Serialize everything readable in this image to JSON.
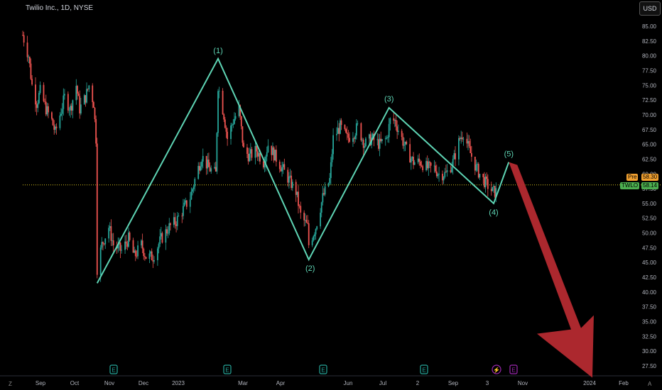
{
  "header": {
    "title": "Twilio Inc., 1D, NYSE",
    "currency_button": "USD"
  },
  "corner_labels": {
    "left": "Z",
    "right": "A"
  },
  "price_labels": {
    "pre_tag": "Pre",
    "pre_value": "58.30",
    "ticker_tag": "TWLO",
    "last_value": "58.14"
  },
  "colors": {
    "up": "#26a69a",
    "down": "#ef5350",
    "wave": "#5ed4b4",
    "arrow": "#b52a30",
    "dotted_line": "#d4c020",
    "earnings": "#26a69a",
    "event_purple": "#9c27b0"
  },
  "chart_data": {
    "type": "candlestick",
    "symbol": "TWLO",
    "interval": "1D",
    "exchange": "NYSE",
    "y_axis_ticks": [
      "85.00",
      "82.50",
      "80.00",
      "77.50",
      "75.00",
      "72.50",
      "70.00",
      "67.50",
      "65.00",
      "62.50",
      "60.00",
      "57.50",
      "55.00",
      "52.50",
      "50.00",
      "47.50",
      "45.00",
      "42.50",
      "40.00",
      "37.50",
      "35.00",
      "32.50",
      "30.00",
      "27.50"
    ],
    "x_axis_ticks": [
      "Sep",
      "Oct",
      "Nov",
      "Dec",
      "2023",
      "Mar",
      "Apr",
      "Jun",
      "Jul",
      "2",
      "Sep",
      "3",
      "Nov",
      "2024",
      "Feb"
    ],
    "ylim": [
      25.5,
      87.5
    ],
    "close_series": [
      [
        "2022-09-01",
        83.5
      ],
      [
        "2022-09-06",
        80
      ],
      [
        "2022-09-09",
        75
      ],
      [
        "2022-09-13",
        72
      ],
      [
        "2022-09-16",
        74
      ],
      [
        "2022-09-21",
        71
      ],
      [
        "2022-09-26",
        69
      ],
      [
        "2022-09-29",
        67
      ],
      [
        "2022-10-03",
        70
      ],
      [
        "2022-10-07",
        73
      ],
      [
        "2022-10-12",
        71
      ],
      [
        "2022-10-17",
        75
      ],
      [
        "2022-10-20",
        71
      ],
      [
        "2022-10-25",
        73
      ],
      [
        "2022-10-28",
        75
      ],
      [
        "2022-11-01",
        72
      ],
      [
        "2022-11-03",
        66
      ],
      [
        "2022-11-04",
        44
      ],
      [
        "2022-11-08",
        48
      ],
      [
        "2022-11-14",
        51
      ],
      [
        "2022-11-18",
        48
      ],
      [
        "2022-11-25",
        47
      ],
      [
        "2022-12-01",
        49
      ],
      [
        "2022-12-06",
        46
      ],
      [
        "2022-12-12",
        48
      ],
      [
        "2022-12-16",
        46
      ],
      [
        "2022-12-22",
        46
      ],
      [
        "2022-12-29",
        49
      ],
      [
        "2023-01-05",
        51
      ],
      [
        "2023-01-11",
        52
      ],
      [
        "2023-01-17",
        54
      ],
      [
        "2023-01-23",
        56
      ],
      [
        "2023-01-27",
        59
      ],
      [
        "2023-02-02",
        63
      ],
      [
        "2023-02-08",
        61
      ],
      [
        "2023-02-14",
        60
      ],
      [
        "2023-02-16",
        75
      ],
      [
        "2023-02-21",
        70
      ],
      [
        "2023-02-24",
        66
      ],
      [
        "2023-03-01",
        69
      ],
      [
        "2023-03-06",
        71
      ],
      [
        "2023-03-10",
        64
      ],
      [
        "2023-03-15",
        63
      ],
      [
        "2023-03-21",
        64
      ],
      [
        "2023-03-27",
        62
      ],
      [
        "2023-03-31",
        65
      ],
      [
        "2023-04-06",
        63
      ],
      [
        "2023-04-12",
        61
      ],
      [
        "2023-04-18",
        59
      ],
      [
        "2023-04-24",
        57
      ],
      [
        "2023-04-28",
        53
      ],
      [
        "2023-05-04",
        51
      ],
      [
        "2023-05-05",
        48
      ],
      [
        "2023-05-11",
        51
      ],
      [
        "2023-05-17",
        56
      ],
      [
        "2023-05-23",
        59
      ],
      [
        "2023-05-26",
        66
      ],
      [
        "2023-06-01",
        68
      ],
      [
        "2023-06-07",
        66
      ],
      [
        "2023-06-13",
        67
      ],
      [
        "2023-06-16",
        68
      ],
      [
        "2023-06-22",
        65
      ],
      [
        "2023-06-28",
        66
      ],
      [
        "2023-07-05",
        65
      ],
      [
        "2023-07-11",
        66
      ],
      [
        "2023-07-14",
        69
      ],
      [
        "2023-07-18",
        69
      ],
      [
        "2023-07-24",
        66
      ],
      [
        "2023-07-28",
        64
      ],
      [
        "2023-08-03",
        62
      ],
      [
        "2023-08-09",
        62
      ],
      [
        "2023-08-15",
        61
      ],
      [
        "2023-08-21",
        61
      ],
      [
        "2023-08-25",
        60
      ],
      [
        "2023-08-31",
        60
      ],
      [
        "2023-09-06",
        62
      ],
      [
        "2023-09-12",
        66
      ],
      [
        "2023-09-15",
        67
      ],
      [
        "2023-09-20",
        64
      ],
      [
        "2023-09-26",
        61
      ],
      [
        "2023-10-02",
        59
      ],
      [
        "2023-10-06",
        58
      ],
      [
        "2023-10-10",
        57
      ],
      [
        "2023-10-13",
        57
      ],
      [
        "2023-10-16",
        58.1
      ]
    ],
    "wave_labels": [
      "(1)",
      "(2)",
      "(3)",
      "(4)",
      "(5)"
    ],
    "wave_points": [
      [
        "2022-11-04",
        41.5
      ],
      [
        "2023-02-16",
        79.5
      ],
      [
        "2023-05-05",
        45.5
      ],
      [
        "2023-07-13",
        71.2
      ],
      [
        "2023-10-11",
        55.0
      ],
      [
        "2023-10-24",
        62.0
      ]
    ],
    "projection_arrow": {
      "from": [
        "2023-10-24",
        62.0
      ],
      "to": [
        "2023-12-30",
        25.5
      ]
    },
    "horizontal_line": 58.14,
    "event_markers": [
      "E",
      "E",
      "E",
      "E",
      "⚡",
      "E"
    ]
  }
}
